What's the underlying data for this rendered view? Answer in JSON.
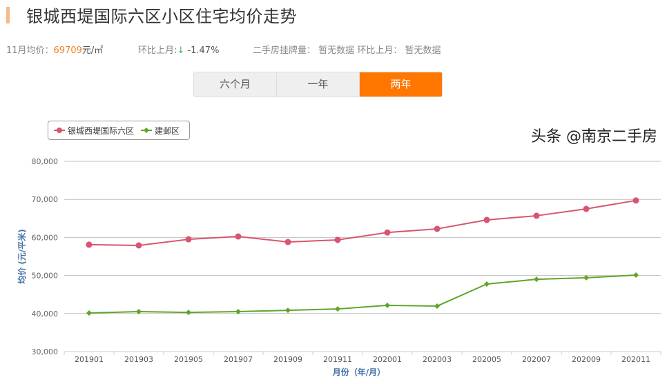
{
  "header": {
    "title": "银城西堤国际六区小区住宅均价走势"
  },
  "stats": {
    "avg_label": "11月均价：",
    "avg_value": "69709",
    "avg_unit": "元/㎡",
    "mom_label": "环比上月:",
    "mom_arrow": "↓",
    "mom_value": "-1.47%",
    "listing_label": "二手房挂牌量：",
    "listing_value": "暂无数据",
    "listing_mom_label": "环比上月：",
    "listing_mom_value": "暂无数据"
  },
  "tabs": [
    {
      "label": "六个月",
      "active": false
    },
    {
      "label": "一年",
      "active": false
    },
    {
      "label": "两年",
      "active": true
    }
  ],
  "watermark": "头条 @南京二手房",
  "chart_data": {
    "type": "line",
    "title": "",
    "xlabel": "月份（年/月）",
    "ylabel": "均价 (元/平米)",
    "ylim": [
      30000,
      80000
    ],
    "yticks": [
      "30,000",
      "40,000",
      "50,000",
      "60,000",
      "70,000",
      "80,000"
    ],
    "grid": true,
    "legend": "top-left",
    "categories": [
      "201901",
      "201903",
      "201905",
      "201907",
      "201909",
      "201911",
      "202001",
      "202003",
      "202005",
      "202007",
      "202009",
      "202011"
    ],
    "series": [
      {
        "name": "银城西堤国际六区",
        "color": "#d9546f",
        "marker": "circle",
        "values": [
          58100,
          57900,
          59500,
          60250,
          58800,
          59350,
          61300,
          62250,
          64600,
          65700,
          67500,
          69709
        ]
      },
      {
        "name": "建邺区",
        "color": "#5fa52a",
        "marker": "diamond",
        "values": [
          40150,
          40500,
          40300,
          40500,
          40850,
          41200,
          42150,
          41950,
          47750,
          49000,
          49400,
          50100
        ]
      }
    ]
  }
}
